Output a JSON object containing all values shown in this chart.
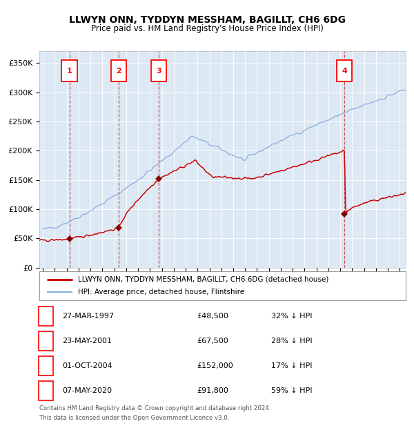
{
  "title": "LLWYN ONN, TYDDYN MESSHAM, BAGILLT, CH6 6DG",
  "subtitle": "Price paid vs. HM Land Registry's House Price Index (HPI)",
  "plot_bg_color": "#dce9f5",
  "fig_bg_color": "#ffffff",
  "red_line_color": "#cc0000",
  "blue_line_color": "#88aadd",
  "marker_color": "#880000",
  "dashed_line_color": "#cc3333",
  "ylim": [
    0,
    370000
  ],
  "yticks": [
    0,
    50000,
    100000,
    150000,
    200000,
    250000,
    300000,
    350000
  ],
  "ytick_labels": [
    "£0",
    "£50K",
    "£100K",
    "£150K",
    "£200K",
    "£250K",
    "£300K",
    "£350K"
  ],
  "xlim_start": 1994.7,
  "xlim_end": 2025.5,
  "sale_dates_decimal": [
    1997.23,
    2001.39,
    2004.75,
    2020.35
  ],
  "sale_prices": [
    48500,
    67500,
    152000,
    91800
  ],
  "sale_labels": [
    "1",
    "2",
    "3",
    "4"
  ],
  "legend_line1": "LLWYN ONN, TYDDYN MESSHAM, BAGILLT, CH6 6DG (detached house)",
  "legend_line2": "HPI: Average price, detached house, Flintshire",
  "table_rows": [
    [
      "1",
      "27-MAR-1997",
      "£48,500",
      "32% ↓ HPI"
    ],
    [
      "2",
      "23-MAY-2001",
      "£67,500",
      "28% ↓ HPI"
    ],
    [
      "3",
      "01-OCT-2004",
      "£152,000",
      "17% ↓ HPI"
    ],
    [
      "4",
      "07-MAY-2020",
      "£91,800",
      "59% ↓ HPI"
    ]
  ],
  "footnote1": "Contains HM Land Registry data © Crown copyright and database right 2024.",
  "footnote2": "This data is licensed under the Open Government Licence v3.0."
}
